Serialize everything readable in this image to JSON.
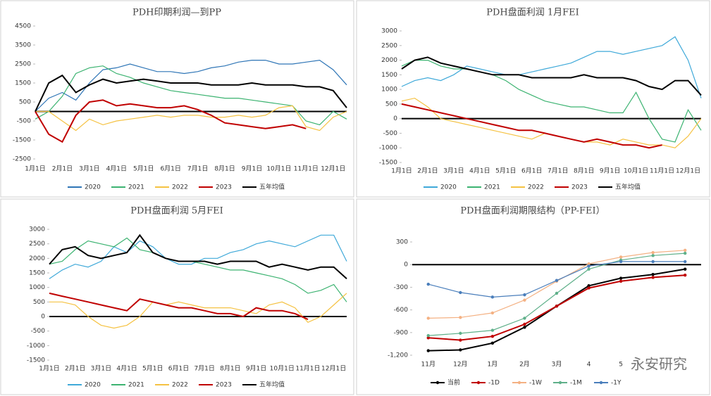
{
  "chart_data": [
    {
      "type": "line",
      "title": "PDH印期利润—到PP",
      "categories": [
        "1月1日",
        null,
        "2月1日",
        null,
        "3月1日",
        null,
        "4月1日",
        null,
        "5月1日",
        null,
        "6月1日",
        null,
        "7月1日",
        null,
        "8月1日",
        null,
        "9月1日",
        null,
        "10月1日",
        null,
        "11月1日",
        null,
        "12月1日",
        null
      ],
      "ylim": [
        -2500,
        4500
      ],
      "yticks": [
        -2500,
        -1500,
        -500,
        500,
        1500,
        2500,
        3500,
        4500
      ],
      "series": [
        {
          "name": "2020",
          "color": "#2e75b6",
          "values": [
            0,
            700,
            1000,
            600,
            1500,
            2200,
            2300,
            2500,
            2300,
            2100,
            2100,
            2000,
            2100,
            2300,
            2400,
            2600,
            2700,
            2700,
            2500,
            2500,
            2600,
            2700,
            2200,
            1400
          ]
        },
        {
          "name": "2021",
          "color": "#3cb371",
          "values": [
            -400,
            0,
            800,
            2000,
            2300,
            2400,
            2000,
            1800,
            1500,
            1300,
            1100,
            1000,
            900,
            800,
            700,
            700,
            600,
            500,
            400,
            300,
            -500,
            -700,
            0,
            -400
          ]
        },
        {
          "name": "2022",
          "color": "#f5c242",
          "values": [
            0,
            0,
            -500,
            -1000,
            -400,
            -700,
            -500,
            -400,
            -300,
            -200,
            -300,
            -200,
            -200,
            -300,
            -300,
            -200,
            -300,
            -200,
            200,
            300,
            -800,
            -1000,
            -300,
            0
          ]
        },
        {
          "name": "2023",
          "color": "#c00000",
          "values": [
            0,
            -1200,
            -1600,
            -200,
            500,
            600,
            300,
            400,
            300,
            200,
            200,
            300,
            100,
            -200,
            -600,
            -700,
            -800,
            -900,
            -800,
            -700,
            -900,
            null,
            null,
            null
          ]
        },
        {
          "name": "五年均值",
          "color": "#000000",
          "values": [
            0,
            1500,
            1900,
            1000,
            1400,
            1700,
            1500,
            1600,
            1700,
            1600,
            1500,
            1500,
            1500,
            1400,
            1400,
            1400,
            1500,
            1400,
            1400,
            1400,
            1300,
            1300,
            1100,
            200
          ]
        }
      ]
    },
    {
      "type": "line",
      "title": "PDH盘面利润 1月FEI",
      "categories": [
        "1月1日",
        null,
        "2月1日",
        null,
        "3月1日",
        null,
        "4月1日",
        null,
        "5月1日",
        null,
        "6月1日",
        null,
        "7月1日",
        null,
        "8月1日",
        null,
        "9月1日",
        null,
        "10月1日",
        null,
        "11月1日",
        null,
        "12月1日",
        null
      ],
      "ylim": [
        -1500,
        3000
      ],
      "yticks": [
        -1500,
        -1000,
        -500,
        0,
        500,
        1000,
        1500,
        2000,
        2500,
        3000
      ],
      "series": [
        {
          "name": "2020",
          "color": "#3fa9d9",
          "values": [
            1100,
            1300,
            1400,
            1300,
            1500,
            1800,
            1700,
            1600,
            1500,
            1500,
            1600,
            1700,
            1800,
            1900,
            2100,
            2300,
            2300,
            2200,
            2300,
            2400,
            2500,
            2800,
            2000,
            700
          ]
        },
        {
          "name": "2021",
          "color": "#3cb371",
          "values": [
            1800,
            2000,
            2000,
            1800,
            1700,
            1700,
            1600,
            1500,
            1300,
            1000,
            800,
            600,
            500,
            400,
            400,
            300,
            200,
            200,
            900,
            0,
            -700,
            -800,
            300,
            -400
          ]
        },
        {
          "name": "2022",
          "color": "#f5c242",
          "values": [
            600,
            700,
            400,
            0,
            -100,
            -200,
            -300,
            -400,
            -500,
            -600,
            -700,
            -500,
            -600,
            -700,
            -800,
            -800,
            -900,
            -700,
            -800,
            -900,
            -900,
            -1000,
            -600,
            0
          ]
        },
        {
          "name": "2023",
          "color": "#c00000",
          "values": [
            500,
            400,
            300,
            200,
            100,
            0,
            -100,
            -200,
            -300,
            -400,
            -400,
            -500,
            -600,
            -700,
            -800,
            -700,
            -800,
            -900,
            -900,
            -1000,
            -900,
            null,
            null,
            null
          ]
        },
        {
          "name": "五年均值",
          "color": "#000000",
          "values": [
            1700,
            2000,
            2100,
            1900,
            1800,
            1700,
            1600,
            1500,
            1500,
            1500,
            1400,
            1400,
            1400,
            1400,
            1500,
            1400,
            1400,
            1400,
            1300,
            1100,
            1000,
            1300,
            1300,
            800
          ]
        }
      ]
    },
    {
      "type": "line",
      "title": "PDH盘面利润 5月FEI",
      "categories": [
        "1月1日",
        null,
        "2月1日",
        null,
        "3月1日",
        null,
        "4月1日",
        null,
        "5月1日",
        null,
        "6月1日",
        null,
        "7月1日",
        null,
        "8月1日",
        null,
        "9月1日",
        null,
        "10月1日",
        null,
        "11月1日",
        null,
        "12月1日",
        null
      ],
      "ylim": [
        -1500,
        3000
      ],
      "yticks": [
        -1500,
        -1000,
        -500,
        0,
        500,
        1000,
        1500,
        2000,
        2500,
        3000
      ],
      "series": [
        {
          "name": "2020",
          "color": "#3fa9d9",
          "values": [
            1300,
            1600,
            1800,
            1700,
            1900,
            2400,
            2200,
            2600,
            2400,
            2000,
            1800,
            1800,
            2000,
            2000,
            2200,
            2300,
            2500,
            2600,
            2500,
            2400,
            2600,
            2800,
            2800,
            1900
          ]
        },
        {
          "name": "2021",
          "color": "#3cb371",
          "values": [
            1800,
            1900,
            2300,
            2600,
            2500,
            2400,
            2700,
            2300,
            2200,
            2000,
            1900,
            1900,
            1800,
            1700,
            1600,
            1600,
            1500,
            1400,
            1300,
            1100,
            800,
            900,
            1100,
            500
          ]
        },
        {
          "name": "2022",
          "color": "#f5c242",
          "values": [
            500,
            500,
            400,
            0,
            -300,
            -400,
            -300,
            0,
            500,
            400,
            500,
            400,
            300,
            300,
            300,
            200,
            100,
            400,
            500,
            300,
            -200,
            0,
            400,
            800
          ]
        },
        {
          "name": "2023",
          "color": "#c00000",
          "values": [
            800,
            700,
            600,
            500,
            400,
            300,
            200,
            600,
            500,
            400,
            300,
            300,
            200,
            100,
            100,
            0,
            300,
            200,
            200,
            100,
            -100,
            null,
            null,
            null
          ]
        },
        {
          "name": "五年均值",
          "color": "#000000",
          "values": [
            1800,
            2300,
            2400,
            2100,
            2000,
            2100,
            2200,
            2800,
            2200,
            2000,
            1900,
            1900,
            1900,
            1800,
            1900,
            1900,
            1900,
            1700,
            1800,
            1700,
            1600,
            1700,
            1700,
            1300
          ]
        }
      ]
    },
    {
      "type": "line",
      "title": "PDH盘面利润期限结构（PP-FEI）",
      "markers": true,
      "watermark": "永安研究",
      "categories": [
        "11月",
        "12月",
        "1月",
        "2月",
        "3月",
        "4",
        "5",
        null,
        null
      ],
      "ylim": [
        -1200,
        300
      ],
      "yticks": [
        {
          "value": -1200,
          "label": "-1,200"
        },
        -900,
        -600,
        -300,
        0,
        300
      ],
      "series": [
        {
          "name": "当前",
          "color": "#000000",
          "values": [
            -1140,
            -1130,
            -1040,
            -830,
            -550,
            -280,
            -180,
            -130,
            -60
          ]
        },
        {
          "name": "-1D",
          "color": "#c00000",
          "values": [
            -970,
            -1000,
            -950,
            -790,
            -550,
            -310,
            -220,
            -170,
            -140
          ]
        },
        {
          "name": "-1W",
          "color": "#f4b183",
          "values": [
            -710,
            -700,
            -640,
            -470,
            -220,
            10,
            100,
            160,
            190
          ]
        },
        {
          "name": "-1M",
          "color": "#5fb08a",
          "values": [
            -940,
            -910,
            -870,
            -710,
            -380,
            -60,
            60,
            120,
            150
          ]
        },
        {
          "name": "-1Y",
          "color": "#4a7ebb",
          "values": [
            -260,
            -370,
            -430,
            -400,
            -210,
            -20,
            40,
            40,
            40
          ]
        }
      ]
    }
  ]
}
